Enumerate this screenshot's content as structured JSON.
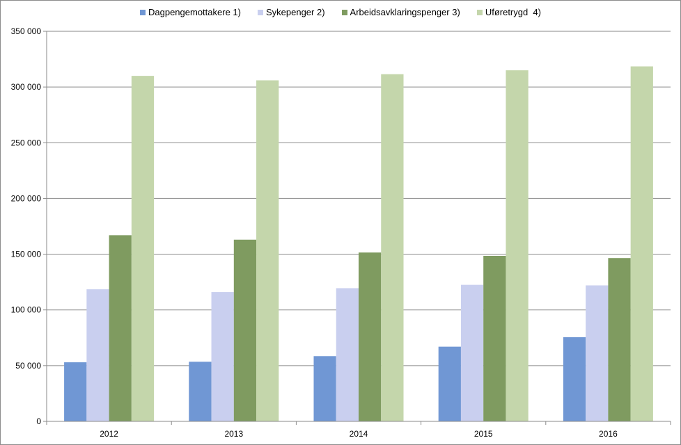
{
  "chart_data": {
    "type": "bar",
    "categories": [
      "2012",
      "2013",
      "2014",
      "2015",
      "2016"
    ],
    "series": [
      {
        "name": "Dagpengemottakere 1)",
        "color": "#7097d4",
        "values": [
          53000,
          53500,
          58500,
          67000,
          75500
        ]
      },
      {
        "name": "Sykepenger 2)",
        "color": "#c9cfef",
        "values": [
          118500,
          116000,
          119500,
          122500,
          122000
        ]
      },
      {
        "name": "Arbeidsavklaringspenger 3)",
        "color": "#7f9b60",
        "values": [
          167000,
          163000,
          151500,
          148500,
          146500
        ]
      },
      {
        "name": "Uføretrygd  4)",
        "color": "#c4d6ab",
        "values": [
          310000,
          306000,
          311500,
          315000,
          318500
        ]
      }
    ],
    "yticks": [
      "0",
      "50 000",
      "100 000",
      "150 000",
      "200 000",
      "250 000",
      "300 000",
      "350 000"
    ],
    "ylim": [
      0,
      350000
    ],
    "grid": true,
    "legend_position": "top"
  }
}
